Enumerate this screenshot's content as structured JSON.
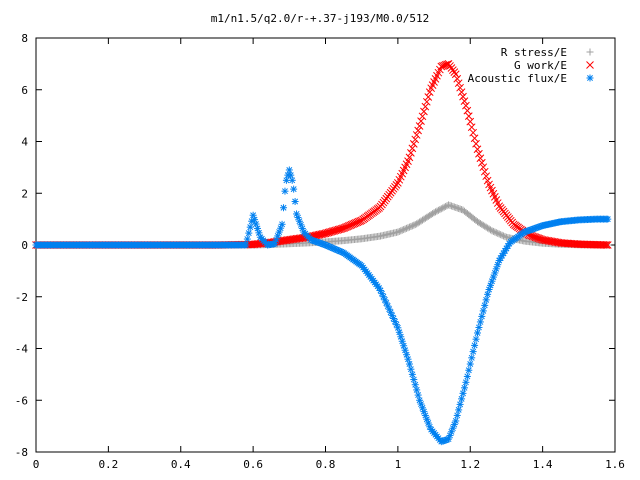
{
  "chart_data": {
    "type": "scatter",
    "title": "m1/n1.5/q2.0/r-+.37-j193/M0.0/512",
    "xlabel": "",
    "ylabel": "",
    "xlim": [
      0,
      1.6
    ],
    "ylim": [
      -8,
      8
    ],
    "x_ticks": [
      "0",
      "0.2",
      "0.4",
      "0.6",
      "0.8",
      "1",
      "1.2",
      "1.4",
      "1.6"
    ],
    "y_ticks": [
      "8",
      "6",
      "4",
      "2",
      "0",
      "-2",
      "-4",
      "-6",
      "-8"
    ],
    "grid": false,
    "legend_position": "top-right",
    "series": [
      {
        "name": "R stress/E",
        "marker": "+",
        "color": "#a0a0a0",
        "x": [
          0.0,
          0.1,
          0.2,
          0.3,
          0.4,
          0.5,
          0.6,
          0.65,
          0.7,
          0.75,
          0.8,
          0.85,
          0.9,
          0.95,
          1.0,
          1.05,
          1.1,
          1.14,
          1.18,
          1.22,
          1.26,
          1.3,
          1.35,
          1.4,
          1.45,
          1.5,
          1.55,
          1.58
        ],
        "y": [
          0.0,
          0.0,
          0.0,
          0.0,
          0.0,
          0.0,
          0.0,
          0.02,
          0.05,
          0.08,
          0.12,
          0.17,
          0.24,
          0.34,
          0.5,
          0.8,
          1.25,
          1.55,
          1.35,
          0.9,
          0.55,
          0.3,
          0.15,
          0.07,
          0.03,
          0.01,
          0.0,
          0.0
        ]
      },
      {
        "name": "G work/E",
        "marker": "x",
        "color": "#ff0000",
        "x": [
          0.0,
          0.1,
          0.2,
          0.3,
          0.4,
          0.5,
          0.6,
          0.65,
          0.7,
          0.75,
          0.8,
          0.85,
          0.9,
          0.95,
          1.0,
          1.03,
          1.06,
          1.09,
          1.12,
          1.14,
          1.16,
          1.19,
          1.22,
          1.25,
          1.28,
          1.32,
          1.36,
          1.4,
          1.45,
          1.5,
          1.55,
          1.58
        ],
        "y": [
          0.0,
          0.0,
          0.0,
          0.0,
          0.0,
          0.0,
          0.02,
          0.1,
          0.2,
          0.3,
          0.45,
          0.65,
          0.95,
          1.45,
          2.4,
          3.3,
          4.6,
          6.0,
          6.9,
          7.0,
          6.6,
          5.3,
          3.7,
          2.4,
          1.5,
          0.8,
          0.4,
          0.2,
          0.08,
          0.03,
          0.01,
          0.0
        ]
      },
      {
        "name": "Acoustic flux/E",
        "marker": "*",
        "color": "#0080f0",
        "x": [
          0.0,
          0.1,
          0.2,
          0.3,
          0.4,
          0.5,
          0.58,
          0.6,
          0.62,
          0.64,
          0.66,
          0.68,
          0.69,
          0.7,
          0.71,
          0.72,
          0.74,
          0.76,
          0.8,
          0.85,
          0.9,
          0.95,
          1.0,
          1.03,
          1.06,
          1.09,
          1.12,
          1.14,
          1.16,
          1.19,
          1.22,
          1.25,
          1.28,
          1.31,
          1.35,
          1.4,
          1.45,
          1.5,
          1.55,
          1.58
        ],
        "y": [
          0.0,
          0.0,
          0.0,
          0.0,
          0.0,
          0.0,
          0.0,
          1.15,
          0.3,
          0.0,
          0.05,
          0.8,
          2.4,
          2.9,
          2.4,
          1.2,
          0.5,
          0.2,
          0.0,
          -0.3,
          -0.8,
          -1.7,
          -3.2,
          -4.5,
          -6.0,
          -7.1,
          -7.6,
          -7.5,
          -6.8,
          -5.2,
          -3.4,
          -1.8,
          -0.6,
          0.1,
          0.5,
          0.75,
          0.9,
          0.97,
          1.0,
          1.0
        ]
      }
    ]
  }
}
